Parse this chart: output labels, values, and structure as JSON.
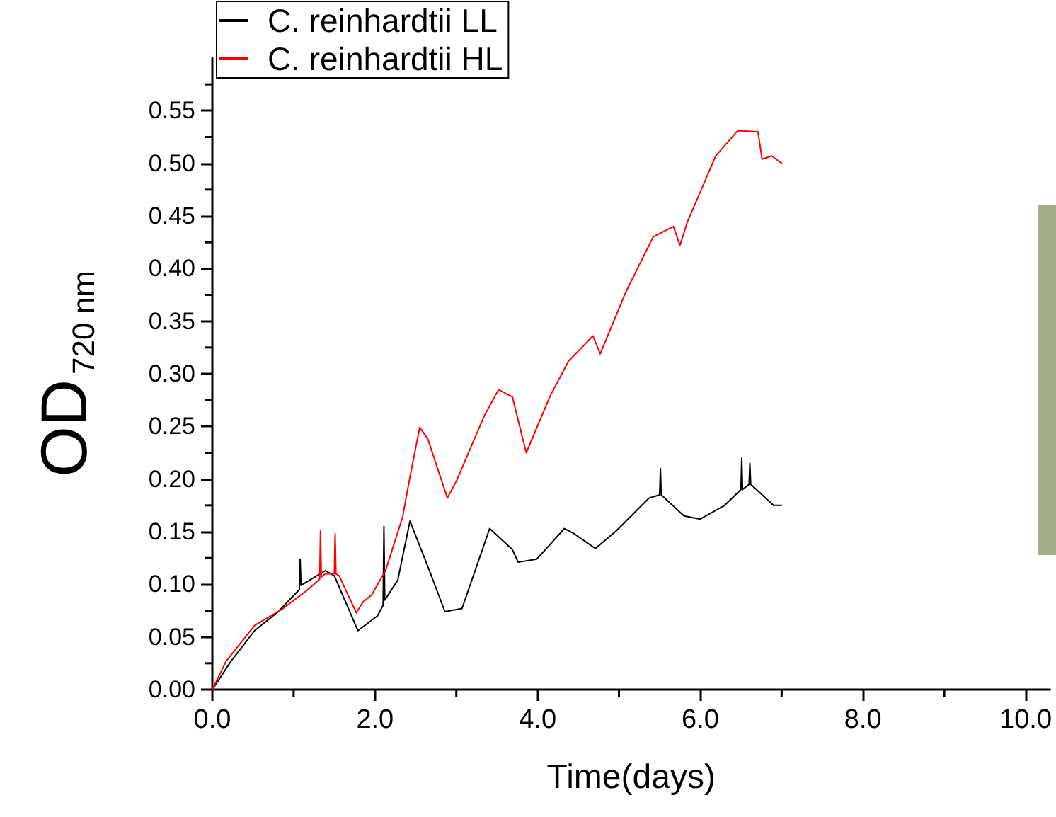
{
  "chart_data": {
    "type": "line",
    "xlabel": "Time(days)",
    "ylabel": "OD$_{720 nm}$",
    "xlim": [
      0,
      10.3
    ],
    "ylim": [
      0,
      0.6
    ],
    "xticks": [
      {
        "value": 0,
        "label": "0.0"
      },
      {
        "value": 1,
        "label": null
      },
      {
        "value": 2,
        "label": "2.0"
      },
      {
        "value": 3,
        "label": null
      },
      {
        "value": 4,
        "label": "4.0"
      },
      {
        "value": 5,
        "label": null
      },
      {
        "value": 6,
        "label": "6.0"
      },
      {
        "value": 7,
        "label": null
      },
      {
        "value": 8,
        "label": "8.0"
      },
      {
        "value": 9,
        "label": null
      },
      {
        "value": 10,
        "label": "10.0"
      }
    ],
    "yticks": [
      {
        "value": 0,
        "label": "0.00"
      },
      {
        "value": 0.025,
        "label": null
      },
      {
        "value": 0.05,
        "label": "0.05"
      },
      {
        "value": 0.075,
        "label": null
      },
      {
        "value": 0.1,
        "label": "0.10"
      },
      {
        "value": 0.125,
        "label": null
      },
      {
        "value": 0.15,
        "label": "0.15"
      },
      {
        "value": 0.175,
        "label": null
      },
      {
        "value": 0.2,
        "label": "0.20"
      },
      {
        "value": 0.225,
        "label": null
      },
      {
        "value": 0.25,
        "label": "0.25"
      },
      {
        "value": 0.275,
        "label": null
      },
      {
        "value": 0.3,
        "label": "0.30"
      },
      {
        "value": 0.325,
        "label": null
      },
      {
        "value": 0.35,
        "label": "0.35"
      },
      {
        "value": 0.375,
        "label": null
      },
      {
        "value": 0.4,
        "label": "0.40"
      },
      {
        "value": 0.425,
        "label": null
      },
      {
        "value": 0.45,
        "label": "0.45"
      },
      {
        "value": 0.475,
        "label": null
      },
      {
        "value": 0.5,
        "label": "0.50"
      },
      {
        "value": 0.525,
        "label": null
      },
      {
        "value": 0.55,
        "label": "0.55"
      },
      {
        "value": 0.575,
        "label": null
      }
    ],
    "grid": false,
    "legend": "top left",
    "marker": "none",
    "line_style": "solid",
    "series": [
      {
        "name": "C. reinhardtii LL",
        "color": "#000000",
        "x": [
          0,
          0.23,
          0.52,
          0.81,
          1.07,
          1.08,
          1.09,
          1.39,
          1.5,
          1.79,
          2.03,
          2.1,
          2.11,
          2.12,
          2.28,
          2.43,
          2.65,
          2.86,
          3.07,
          3.41,
          3.69,
          3.76,
          3.99,
          4.33,
          4.45,
          4.71,
          4.97,
          5.37,
          5.5,
          5.51,
          5.52,
          5.8,
          6.0,
          6.3,
          6.5,
          6.51,
          6.52,
          6.6,
          6.61,
          6.62,
          6.9,
          7.0
        ],
        "values": [
          0,
          0.027,
          0.056,
          0.074,
          0.095,
          0.124,
          0.099,
          0.113,
          0.108,
          0.056,
          0.07,
          0.08,
          0.155,
          0.085,
          0.104,
          0.16,
          0.117,
          0.074,
          0.077,
          0.153,
          0.133,
          0.121,
          0.124,
          0.153,
          0.148,
          0.134,
          0.151,
          0.182,
          0.185,
          0.21,
          0.185,
          0.165,
          0.162,
          0.175,
          0.19,
          0.22,
          0.19,
          0.195,
          0.215,
          0.195,
          0.175,
          0.175
        ]
      },
      {
        "name": "C. reinhardtii HL",
        "color": "#ff0000",
        "x": [
          0,
          0.17,
          0.52,
          0.87,
          1.16,
          1.32,
          1.33,
          1.34,
          1.39,
          1.5,
          1.51,
          1.52,
          1.56,
          1.77,
          1.85,
          1.96,
          2.13,
          2.34,
          2.43,
          2.55,
          2.65,
          2.89,
          3.0,
          3.35,
          3.52,
          3.69,
          3.86,
          4.16,
          4.38,
          4.68,
          4.77,
          5.08,
          5.42,
          5.67,
          5.75,
          5.84,
          6.19,
          6.46,
          6.71,
          6.76,
          6.88,
          7.0
        ],
        "values": [
          0,
          0.027,
          0.061,
          0.077,
          0.094,
          0.105,
          0.151,
          0.107,
          0.11,
          0.11,
          0.148,
          0.11,
          0.108,
          0.073,
          0.083,
          0.09,
          0.113,
          0.164,
          0.202,
          0.249,
          0.238,
          0.182,
          0.198,
          0.261,
          0.285,
          0.278,
          0.225,
          0.28,
          0.312,
          0.336,
          0.319,
          0.377,
          0.43,
          0.44,
          0.422,
          0.444,
          0.507,
          0.531,
          0.53,
          0.504,
          0.507,
          0.5
        ]
      }
    ]
  }
}
